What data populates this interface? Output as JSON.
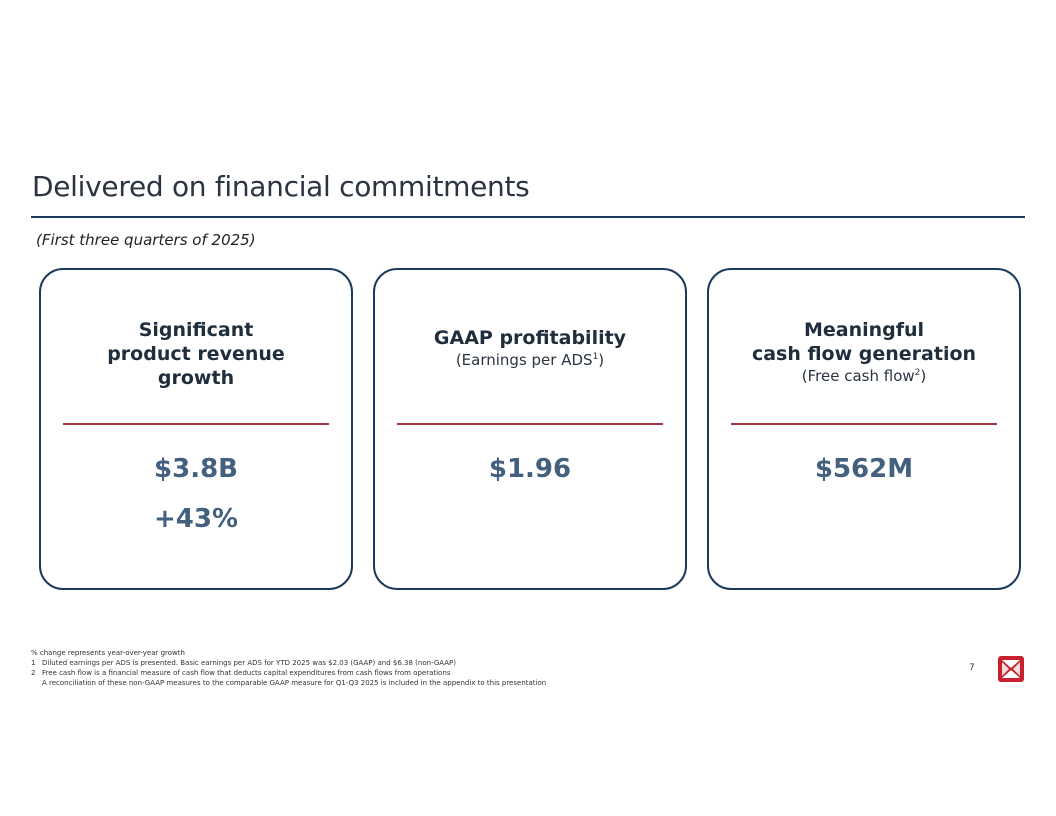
{
  "page": {
    "title": "Delivered on financial commitments",
    "subtitle": "(First three quarters of 2025)",
    "page_number": "7"
  },
  "cards": [
    {
      "heading": "Significant\nproduct revenue\ngrowth",
      "subheading": "",
      "values": [
        "$3.8B",
        "+43%"
      ]
    },
    {
      "heading": "GAAP profitability",
      "subheading": "(Earnings per ADS",
      "subheading_sup": "1",
      "subheading_end": ")",
      "values": [
        "$1.96"
      ]
    },
    {
      "heading": "Meaningful\ncash flow generation",
      "subheading": "(Free cash flow",
      "subheading_sup": "2",
      "subheading_end": ")",
      "values": [
        "$562M"
      ]
    }
  ],
  "footnotes": {
    "intro": "% change represents year-over-year growth",
    "note1_marker": "1",
    "note1": "Diluted earnings per ADS is presented. Basic earnings per ADS for YTD 2025 was $2.03 (GAAP) and $6.38 (non-GAAP)",
    "note2_marker": "2",
    "note2": "Free cash flow is a financial measure of cash flow that deducts capital expenditures from cash flows from operations",
    "reconciliation": "A reconciliation of these non-GAAP measures to the comparable GAAP measure for Q1-Q3 2025 is included in the appendix to this presentation"
  },
  "colors": {
    "accent_navy": "#1c3a5c",
    "divider_red": "#a4363f",
    "metric_blue": "#43607e",
    "logo_red": "#c8202e"
  },
  "icons": {
    "logo": "company-logo-icon"
  }
}
